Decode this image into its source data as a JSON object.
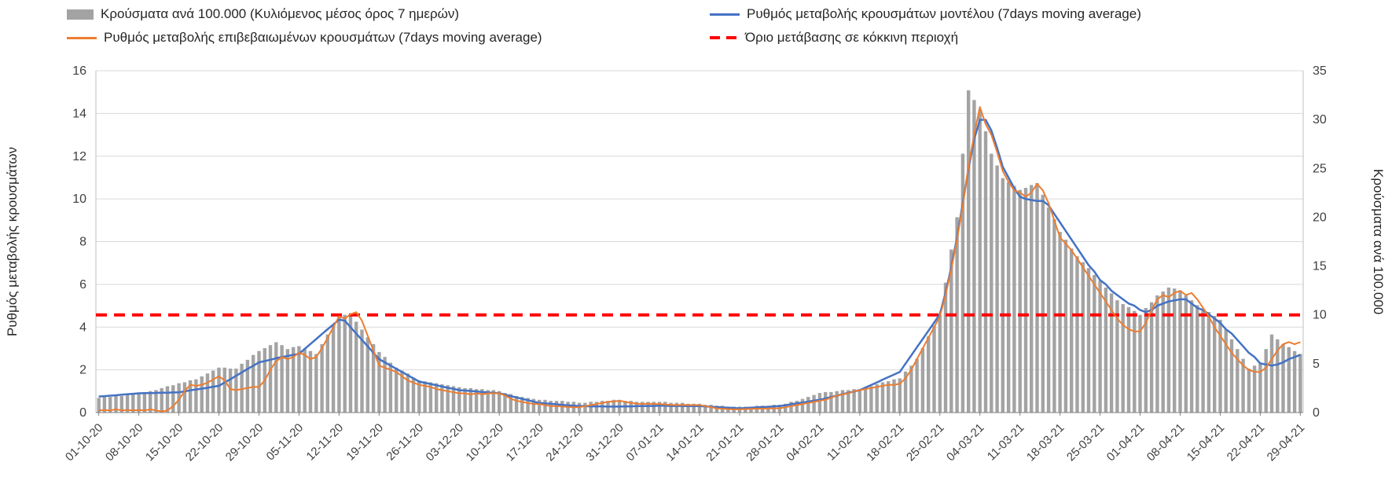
{
  "chart_data": {
    "type": "combo",
    "title": "",
    "legend_position": "top",
    "grid": "horizontal",
    "x_tick_labels": [
      "01-10-20",
      "08-10-20",
      "15-10-20",
      "22-10-20",
      "29-10-20",
      "05-11-20",
      "12-11-20",
      "19-11-20",
      "26-11-20",
      "03-12-20",
      "10-12-20",
      "17-12-20",
      "24-12-20",
      "31-12-20",
      "07-01-21",
      "14-01-21",
      "21-01-21",
      "28-01-21",
      "04-02-21",
      "11-02-21",
      "18-02-21",
      "25-02-21",
      "04-03-21",
      "11-03-21",
      "18-03-21",
      "25-03-21",
      "01-04-21",
      "08-04-21",
      "15-04-21",
      "22-04-21",
      "29-04-21"
    ],
    "x_tick_day_indices": [
      0,
      7,
      14,
      21,
      28,
      35,
      42,
      49,
      56,
      63,
      70,
      77,
      84,
      91,
      98,
      105,
      112,
      119,
      126,
      133,
      140,
      147,
      154,
      161,
      168,
      175,
      182,
      189,
      196,
      203,
      210
    ],
    "left_axis": {
      "label": "Ρυθμός μεταβολής κρουσμάτων",
      "min": 0,
      "max": 16,
      "step": 2
    },
    "right_axis": {
      "label": "Κρούσματα ανά 100.000",
      "min": 0,
      "max": 35,
      "step": 5
    },
    "series": [
      {
        "name": "Κρούσματα ανά 100.000 (Κυλιόμενος μέσος όρος 7 ημερών)",
        "type": "bar",
        "axis": "right",
        "color": "#a3a3a3",
        "values": [
          1.5,
          1.6,
          1.6,
          1.7,
          1.7,
          1.8,
          1.9,
          2.0,
          2.1,
          2.2,
          2.3,
          2.5,
          2.7,
          2.8,
          3.0,
          3.1,
          3.3,
          3.4,
          3.7,
          4.0,
          4.3,
          4.6,
          4.6,
          4.5,
          4.5,
          5.0,
          5.4,
          5.9,
          6.3,
          6.6,
          6.9,
          7.2,
          6.9,
          6.5,
          6.7,
          6.8,
          6.5,
          6.3,
          6.0,
          7.0,
          8.0,
          9.0,
          9.9,
          10.0,
          10.1,
          9.3,
          8.5,
          7.7,
          7.0,
          6.2,
          5.7,
          5.1,
          4.6,
          4.3,
          4.0,
          3.6,
          3.3,
          3.2,
          3.1,
          3.0,
          2.9,
          2.8,
          2.7,
          2.6,
          2.5,
          2.5,
          2.4,
          2.4,
          2.3,
          2.3,
          2.2,
          2.0,
          1.9,
          1.7,
          1.6,
          1.5,
          1.4,
          1.3,
          1.3,
          1.2,
          1.2,
          1.2,
          1.1,
          1.1,
          1.0,
          1.0,
          1.1,
          1.1,
          1.2,
          1.2,
          1.3,
          1.3,
          1.2,
          1.2,
          1.1,
          1.1,
          1.1,
          1.1,
          1.1,
          1.1,
          1.0,
          1.0,
          1.0,
          0.9,
          0.9,
          0.9,
          0.8,
          0.8,
          0.7,
          0.7,
          0.6,
          0.6,
          0.6,
          0.6,
          0.6,
          0.7,
          0.7,
          0.7,
          0.8,
          0.8,
          0.9,
          1.1,
          1.2,
          1.4,
          1.6,
          1.8,
          2.0,
          2.1,
          2.1,
          2.2,
          2.3,
          2.3,
          2.4,
          2.4,
          2.6,
          2.7,
          2.9,
          3.1,
          3.2,
          3.4,
          3.5,
          4.2,
          4.8,
          5.5,
          6.6,
          7.8,
          8.9,
          10.0,
          13.3,
          16.7,
          20.0,
          26.5,
          33.0,
          32.0,
          31.0,
          28.8,
          26.5,
          25.3,
          24.0,
          23.6,
          23.2,
          22.8,
          23.0,
          23.3,
          23.5,
          22.3,
          21.0,
          19.8,
          18.5,
          17.7,
          16.8,
          16.0,
          15.4,
          14.8,
          14.1,
          13.5,
          12.8,
          12.2,
          11.5,
          11.1,
          10.8,
          10.4,
          10.0,
          10.7,
          11.3,
          12.0,
          12.4,
          12.8,
          12.7,
          12.5,
          12.0,
          11.5,
          11.0,
          10.6,
          10.3,
          9.9,
          9.5,
          8.5,
          7.5,
          6.5,
          5.5,
          4.5,
          4.8,
          5.0,
          6.5,
          8.0,
          7.5,
          7.0,
          6.7,
          6.3,
          6.0
        ]
      },
      {
        "name": "Ρυθμός μεταβολής κρουσμάτων μοντέλου (7days moving average)",
        "type": "line",
        "axis": "left",
        "color": "#4472c4",
        "values": [
          0.75,
          0.77,
          0.79,
          0.81,
          0.84,
          0.86,
          0.88,
          0.9,
          0.91,
          0.91,
          0.92,
          0.93,
          0.93,
          0.94,
          0.95,
          0.99,
          1.04,
          1.08,
          1.12,
          1.16,
          1.21,
          1.25,
          1.41,
          1.56,
          1.72,
          1.88,
          2.04,
          2.19,
          2.35,
          2.41,
          2.47,
          2.54,
          2.6,
          2.65,
          2.7,
          2.75,
          2.98,
          3.21,
          3.44,
          3.67,
          3.9,
          4.12,
          4.35,
          4.3,
          4.0,
          3.7,
          3.4,
          3.1,
          2.8,
          2.5,
          2.35,
          2.2,
          2.05,
          1.9,
          1.75,
          1.6,
          1.45,
          1.39,
          1.34,
          1.28,
          1.22,
          1.16,
          1.11,
          1.05,
          1.03,
          1.01,
          0.99,
          0.96,
          0.94,
          0.92,
          0.9,
          0.84,
          0.77,
          0.71,
          0.64,
          0.58,
          0.51,
          0.45,
          0.43,
          0.41,
          0.39,
          0.36,
          0.34,
          0.32,
          0.3,
          0.3,
          0.29,
          0.29,
          0.29,
          0.28,
          0.28,
          0.28,
          0.29,
          0.29,
          0.3,
          0.3,
          0.31,
          0.31,
          0.32,
          0.32,
          0.31,
          0.31,
          0.31,
          0.3,
          0.3,
          0.3,
          0.29,
          0.27,
          0.26,
          0.24,
          0.23,
          0.21,
          0.2,
          0.21,
          0.23,
          0.24,
          0.26,
          0.27,
          0.29,
          0.3,
          0.34,
          0.39,
          0.43,
          0.47,
          0.51,
          0.56,
          0.6,
          0.66,
          0.73,
          0.79,
          0.86,
          0.92,
          0.99,
          1.05,
          1.17,
          1.29,
          1.41,
          1.54,
          1.66,
          1.78,
          1.9,
          2.29,
          2.67,
          3.06,
          3.44,
          3.83,
          4.21,
          4.6,
          5.6,
          6.8,
          8.2,
          9.8,
          11.4,
          12.8,
          13.7,
          13.7,
          13.2,
          12.4,
          11.5,
          11.0,
          10.5,
          10.1,
          10.0,
          9.95,
          9.9,
          9.9,
          9.7,
          9.3,
          8.9,
          8.5,
          8.1,
          7.7,
          7.3,
          6.9,
          6.6,
          6.2,
          6.0,
          5.7,
          5.5,
          5.3,
          5.1,
          5.0,
          4.8,
          4.7,
          4.8,
          5.0,
          5.1,
          5.2,
          5.25,
          5.3,
          5.3,
          5.1,
          4.9,
          4.8,
          4.6,
          4.4,
          4.2,
          3.9,
          3.7,
          3.4,
          3.1,
          2.8,
          2.6,
          2.3,
          2.25,
          2.2,
          2.25,
          2.35,
          2.5,
          2.6,
          2.7
        ]
      },
      {
        "name": "Ρυθμός μεταβολής επιβεβαιωμένων κρουσμάτων (7days moving average)",
        "type": "line",
        "axis": "left",
        "color": "#ed7d31",
        "values": [
          0.1,
          0.12,
          0.1,
          0.15,
          0.1,
          0.12,
          0.1,
          0.12,
          0.1,
          0.15,
          0.1,
          0.05,
          0.1,
          0.3,
          0.6,
          1.0,
          1.3,
          1.25,
          1.3,
          1.4,
          1.55,
          1.7,
          1.5,
          1.1,
          1.05,
          1.1,
          1.15,
          1.2,
          1.2,
          1.5,
          2.0,
          2.4,
          2.6,
          2.5,
          2.6,
          2.8,
          2.7,
          2.5,
          2.6,
          3.0,
          3.5,
          4.0,
          4.5,
          4.4,
          4.6,
          4.7,
          4.3,
          3.6,
          2.9,
          2.2,
          2.1,
          2.0,
          1.9,
          1.7,
          1.5,
          1.4,
          1.3,
          1.25,
          1.2,
          1.1,
          1.05,
          1.0,
          0.95,
          0.9,
          0.9,
          0.85,
          0.9,
          0.85,
          0.9,
          0.9,
          0.9,
          0.8,
          0.65,
          0.55,
          0.5,
          0.45,
          0.4,
          0.4,
          0.35,
          0.3,
          0.3,
          0.28,
          0.26,
          0.25,
          0.25,
          0.3,
          0.35,
          0.4,
          0.45,
          0.5,
          0.52,
          0.55,
          0.5,
          0.45,
          0.42,
          0.4,
          0.42,
          0.4,
          0.4,
          0.38,
          0.36,
          0.35,
          0.36,
          0.35,
          0.35,
          0.35,
          0.3,
          0.25,
          0.2,
          0.18,
          0.16,
          0.15,
          0.15,
          0.16,
          0.17,
          0.18,
          0.18,
          0.19,
          0.2,
          0.2,
          0.25,
          0.3,
          0.35,
          0.4,
          0.45,
          0.5,
          0.55,
          0.6,
          0.7,
          0.8,
          0.85,
          0.9,
          1.0,
          1.05,
          1.1,
          1.15,
          1.2,
          1.25,
          1.3,
          1.3,
          1.35,
          1.6,
          2.0,
          2.5,
          3.0,
          3.5,
          4.0,
          4.5,
          5.5,
          6.7,
          8.1,
          9.7,
          11.5,
          13.0,
          14.3,
          13.5,
          13.0,
          12.2,
          11.3,
          10.8,
          10.4,
          10.3,
          10.1,
          10.3,
          10.7,
          10.4,
          9.8,
          9.0,
          8.2,
          7.9,
          7.6,
          7.2,
          6.8,
          6.4,
          6.0,
          5.6,
          5.2,
          4.8,
          4.4,
          4.1,
          3.9,
          3.8,
          3.8,
          4.2,
          4.8,
          5.3,
          5.5,
          5.4,
          5.6,
          5.7,
          5.5,
          5.6,
          5.3,
          4.9,
          4.5,
          4.0,
          3.6,
          3.2,
          2.8,
          2.5,
          2.2,
          2.0,
          1.9,
          1.9,
          2.1,
          2.5,
          2.9,
          3.2,
          3.3,
          3.2,
          3.3
        ]
      },
      {
        "name": "Όριο μετάβασης σε κόκκινη περιοχή",
        "type": "threshold",
        "axis": "left",
        "color": "#ff0000",
        "value_left_axis": 4.57,
        "value_right_axis": 10
      }
    ]
  }
}
